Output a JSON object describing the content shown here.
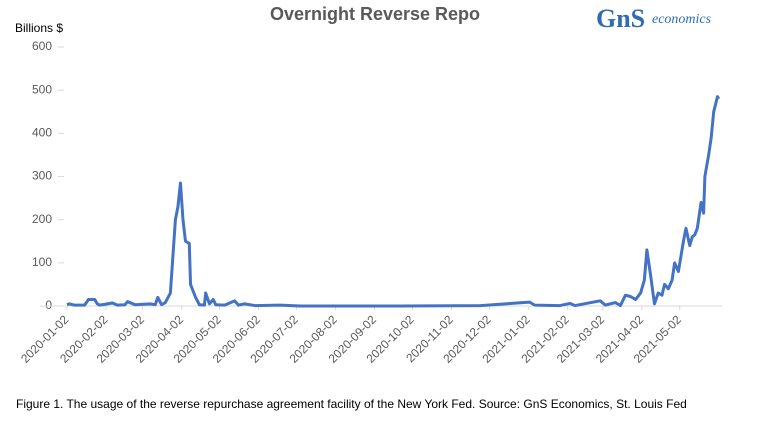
{
  "chart_data": {
    "type": "line",
    "title": "Overnight Reverse Repo",
    "ylabel": "Billions $",
    "xlim": [
      "2020-01-02",
      "2021-06-03"
    ],
    "xticks": [
      "2020-01-02",
      "2020-02-02",
      "2020-03-02",
      "2020-04-02",
      "2020-05-02",
      "2020-06-02",
      "2020-07-02",
      "2020-08-02",
      "2020-09-02",
      "2020-10-02",
      "2020-11-02",
      "2020-12-02",
      "2021-01-02",
      "2021-02-02",
      "2021-03-02",
      "2021-04-02",
      "2021-05-02"
    ],
    "ylim": [
      0,
      600
    ],
    "yticks": [
      0,
      100,
      200,
      300,
      400,
      500,
      600
    ],
    "grid": false,
    "series": [
      {
        "name": "Overnight Reverse Repo",
        "color": "#4472c4",
        "x": [
          "2020-01-02",
          "2020-01-04",
          "2020-01-08",
          "2020-01-16",
          "2020-01-19",
          "2020-01-24",
          "2020-01-26",
          "2020-01-28",
          "2020-02-03",
          "2020-02-07",
          "2020-02-11",
          "2020-02-17",
          "2020-02-19",
          "2020-02-25",
          "2020-03-08",
          "2020-03-12",
          "2020-03-14",
          "2020-03-17",
          "2020-03-20",
          "2020-03-24",
          "2020-03-28",
          "2020-03-30",
          "2020-04-01",
          "2020-04-03",
          "2020-04-05",
          "2020-04-08",
          "2020-04-09",
          "2020-04-13",
          "2020-04-16",
          "2020-04-20",
          "2020-04-21",
          "2020-04-24",
          "2020-04-27",
          "2020-04-29",
          "2020-05-06",
          "2020-05-14",
          "2020-05-17",
          "2020-05-22",
          "2020-05-30",
          "2020-06-19",
          "2020-07-05",
          "2020-09-22",
          "2020-11-25",
          "2021-01-03",
          "2021-01-07",
          "2021-01-27",
          "2021-02-04",
          "2021-02-08",
          "2021-02-28",
          "2021-03-04",
          "2021-03-12",
          "2021-03-16",
          "2021-03-20",
          "2021-03-24",
          "2021-03-28",
          "2021-04-01",
          "2021-04-04",
          "2021-04-06",
          "2021-04-09",
          "2021-04-12",
          "2021-04-15",
          "2021-04-18",
          "2021-04-20",
          "2021-04-23",
          "2021-04-26",
          "2021-04-28",
          "2021-05-01",
          "2021-05-05",
          "2021-05-07",
          "2021-05-10",
          "2021-05-12",
          "2021-05-14",
          "2021-05-16",
          "2021-05-19",
          "2021-05-21",
          "2021-05-22",
          "2021-05-25",
          "2021-05-27",
          "2021-05-29",
          "2021-06-01",
          "2021-06-02"
        ],
        "values": [
          3,
          5,
          2,
          2,
          15,
          15,
          5,
          2,
          5,
          7,
          2,
          3,
          10,
          3,
          5,
          3,
          20,
          3,
          8,
          30,
          200,
          230,
          285,
          200,
          150,
          145,
          50,
          20,
          3,
          2,
          30,
          5,
          15,
          3,
          2,
          12,
          2,
          5,
          1,
          2,
          0,
          0,
          1,
          9,
          2,
          1,
          6,
          1,
          12,
          2,
          8,
          1,
          25,
          22,
          15,
          30,
          60,
          130,
          70,
          5,
          30,
          25,
          50,
          40,
          60,
          100,
          80,
          150,
          180,
          140,
          160,
          165,
          180,
          240,
          215,
          300,
          350,
          390,
          450,
          485,
          480
        ]
      }
    ]
  },
  "logo": {
    "mark": "GnS",
    "text": "economics"
  },
  "caption": "Figure 1. The usage of the reverse repurchase agreement facility of the New York Fed. Source: GnS Economics, St. Louis Fed"
}
